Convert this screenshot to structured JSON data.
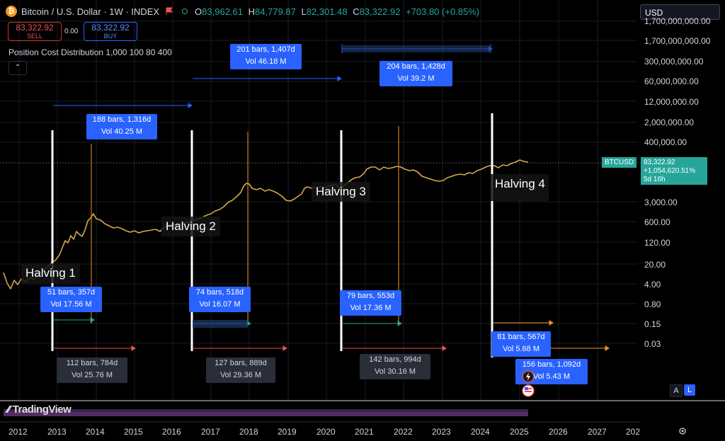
{
  "header": {
    "title": "Bitcoin / U.S. Dollar · 1W · INDEX",
    "logo_glyph": "₿",
    "ohlc": [
      {
        "k": "O",
        "v": "83,962.61"
      },
      {
        "k": "H",
        "v": "84,779.87"
      },
      {
        "k": "L",
        "v": "82,301.48"
      },
      {
        "k": "C",
        "v": "83,322.92"
      }
    ],
    "change": "+703.80 (+0.85%)"
  },
  "trade": {
    "sell_price": "83,322.92",
    "sell_label": "SELL",
    "spread": "0.00",
    "buy_price": "83,322.92",
    "buy_label": "BUY"
  },
  "indicator": {
    "label": "Position Cost Distribution 1,000 100 80 400",
    "collapse_glyph": "⌃"
  },
  "currency_select": {
    "value": "USD"
  },
  "price_axis": [
    "1,700,000,000.00",
    "300,000,000.00",
    "60,000,000.00",
    "12,000,000.00",
    "2,000,000.00",
    "400,000.00",
    "3,000.00",
    "600.00",
    "120.00",
    "20.00",
    "4.00",
    "0.80",
    "0.15",
    "0.03"
  ],
  "time_axis": [
    "2012",
    "2013",
    "2014",
    "2015",
    "2016",
    "2017",
    "2018",
    "2019",
    "2020",
    "2021",
    "2022",
    "2023",
    "2024",
    "2025",
    "2026",
    "2027",
    "202"
  ],
  "current": {
    "symbol": "BTCUSD",
    "price": "83,322.92",
    "pct": "+1,054,620.51%",
    "countdown": "5d 16h"
  },
  "halvings": [
    "Halving 1",
    "Halving 2",
    "Halving 3",
    "Halving 4"
  ],
  "measures": {
    "m1": {
      "bars": "51 bars, 357d",
      "vol": "Vol 17.56 M"
    },
    "m2": {
      "bars": "112 bars, 784d",
      "vol": "Vol 25.76 M"
    },
    "m3": {
      "bars": "188 bars, 1,316d",
      "vol": "Vol 40.25 M"
    },
    "m4": {
      "bars": "74 bars, 518d",
      "vol": "Vol 16.07 M"
    },
    "m5": {
      "bars": "127 bars, 889d",
      "vol": "Vol 29.36 M"
    },
    "m6": {
      "bars": "201 bars, 1,407d",
      "vol": "Vol 46.18 M"
    },
    "m7": {
      "bars": "79 bars, 553d",
      "vol": "Vol 17.36 M"
    },
    "m8": {
      "bars": "142 bars, 994d",
      "vol": "Vol 30.16 M"
    },
    "m9": {
      "bars": "204 bars, 1,428d",
      "vol": "Vol 39.2 M"
    },
    "m10": {
      "bars": "81 bars, 567d",
      "vol": "Vol 5.68 M"
    },
    "m11": {
      "bars": "156 bars, 1,092d",
      "vol": "Vol 5.43 M"
    }
  },
  "scale_buttons": {
    "a": "A",
    "l": "L"
  },
  "branding": {
    "logo": "TradingView"
  },
  "colors": {
    "bg": "#000000",
    "up": "#26a69a",
    "down": "#ef5350",
    "accent": "#2962ff",
    "orange": "#f7931a"
  }
}
